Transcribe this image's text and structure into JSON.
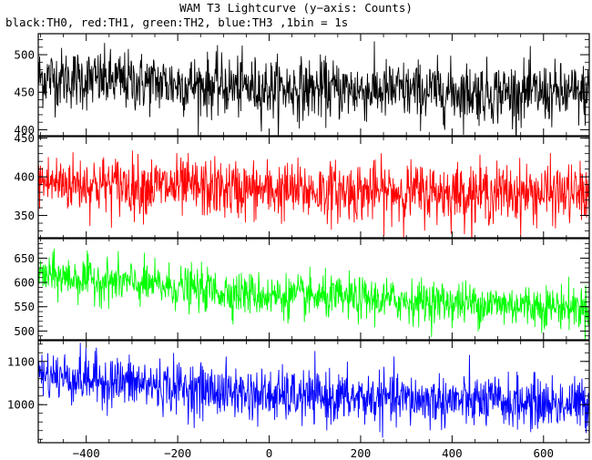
{
  "title": "WAM T3 Lightcurve (y−axis: Counts)",
  "subtitle": "black:TH0, red:TH1, green:TH2, blue:TH3 ,1bin = 1s",
  "chart_data": {
    "type": "line",
    "x_range": [
      -505,
      700
    ],
    "x_ticks": [
      -400,
      -200,
      0,
      200,
      400,
      600
    ],
    "x_tick_labels": [
      "−400",
      "−200",
      "0",
      "200",
      "400",
      "600"
    ],
    "bin_seconds": 1,
    "panels": [
      {
        "series": "TH0",
        "color": "#000000",
        "ylim": [
          392,
          528
        ],
        "y_ticks": [
          400,
          450,
          500
        ],
        "y_tick_labels": [
          "400",
          "450",
          "500"
        ],
        "trend": [
          {
            "x": -505,
            "y": 470
          },
          {
            "x": 0,
            "y": 455
          },
          {
            "x": 700,
            "y": 447
          }
        ],
        "noise_sd": 20
      },
      {
        "series": "TH1",
        "color": "#ff0000",
        "ylim": [
          320,
          452
        ],
        "y_ticks": [
          350,
          400,
          450
        ],
        "y_tick_labels": [
          "350",
          "400",
          "450"
        ],
        "trend": [
          {
            "x": -505,
            "y": 393
          },
          {
            "x": 0,
            "y": 382
          },
          {
            "x": 700,
            "y": 378
          }
        ],
        "noise_sd": 19
      },
      {
        "series": "TH2",
        "color": "#00ff00",
        "ylim": [
          482,
          692
        ],
        "y_ticks": [
          500,
          550,
          600,
          650
        ],
        "y_tick_labels": [
          "500",
          "550",
          "600",
          "650"
        ],
        "trend": [
          {
            "x": -505,
            "y": 615
          },
          {
            "x": 0,
            "y": 573
          },
          {
            "x": 700,
            "y": 548
          }
        ],
        "noise_sd": 22
      },
      {
        "series": "TH3",
        "color": "#0000ff",
        "ylim": [
          912,
          1148
        ],
        "y_ticks": [
          1000,
          1100
        ],
        "y_tick_labels": [
          "1000",
          "1100"
        ],
        "trend": [
          {
            "x": -505,
            "y": 1070
          },
          {
            "x": 0,
            "y": 1020
          },
          {
            "x": 700,
            "y": 1000
          }
        ],
        "noise_sd": 30
      }
    ]
  }
}
